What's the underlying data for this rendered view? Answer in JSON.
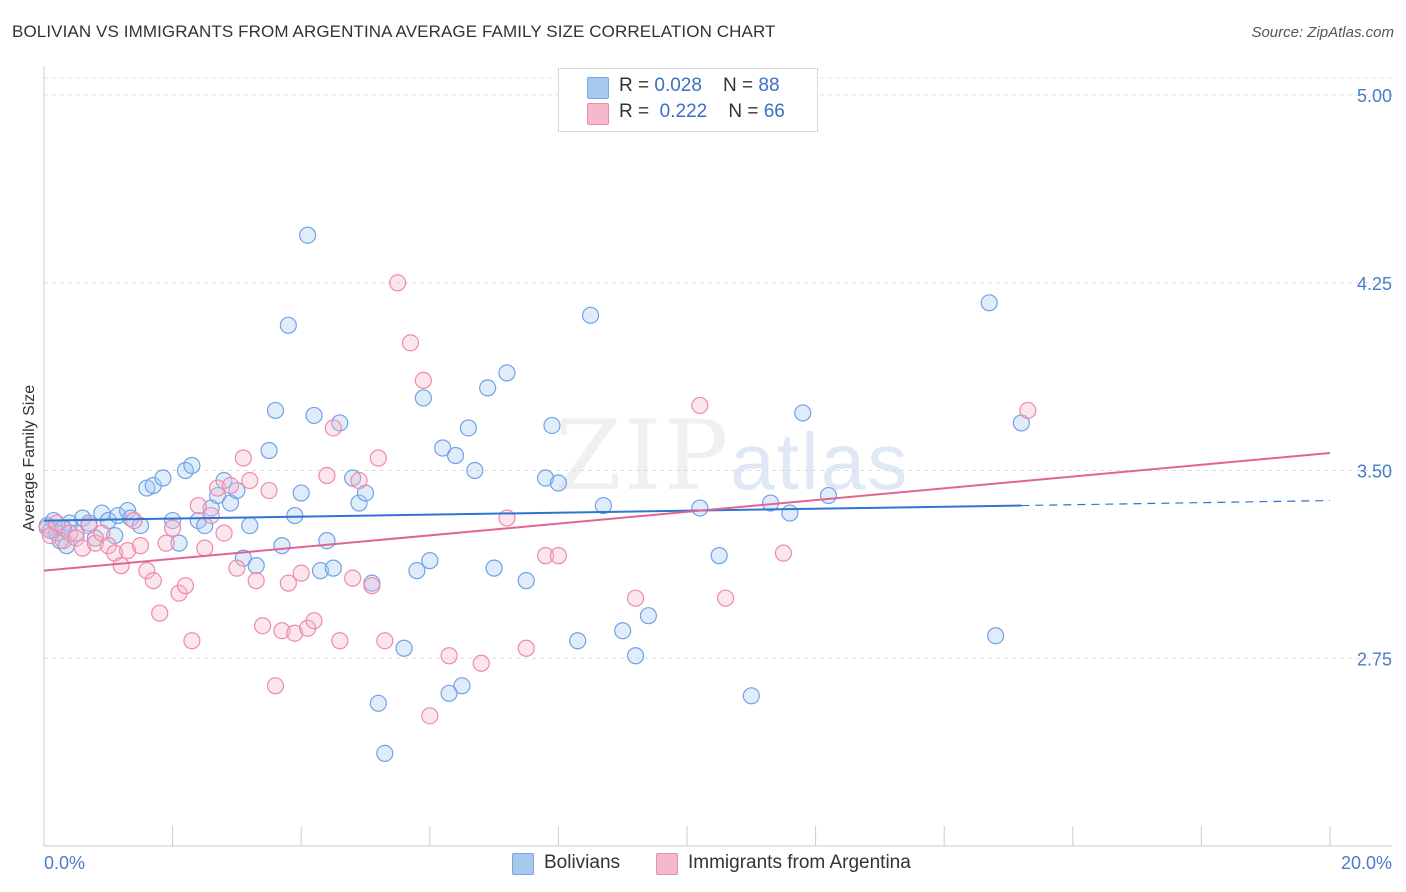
{
  "title": "BOLIVIAN VS IMMIGRANTS FROM ARGENTINA AVERAGE FAMILY SIZE CORRELATION CHART",
  "source": "Source: ZipAtlas.com",
  "watermark": {
    "big": "ZIP",
    "small": "atlas"
  },
  "legend": {
    "rows": [
      {
        "r_label": "R = ",
        "r_value": "0.028",
        "n_label": "N = ",
        "n_value": "88",
        "color": "#a8c8f0"
      },
      {
        "r_label": "R = ",
        "r_value": "0.222",
        "n_label": "N = ",
        "n_value": "66",
        "color": "#f6b8cc"
      }
    ]
  },
  "bottom_legend": [
    {
      "label": "Bolivians",
      "color": "#a8c8f0"
    },
    {
      "label": "Immigrants from Argentina",
      "color": "#f6b8cc"
    }
  ],
  "chart_data": {
    "type": "scatter",
    "title": "BOLIVIAN VS IMMIGRANTS FROM ARGENTINA AVERAGE FAMILY SIZE CORRELATION CHART",
    "xlabel": "",
    "ylabel": "Average Family Size",
    "xlim": [
      0,
      20
    ],
    "ylim": [
      2.0,
      5.1
    ],
    "x_tick_labels": [
      "0.0%",
      "20.0%"
    ],
    "y_ticks": [
      2.75,
      3.5,
      4.25,
      5.0
    ],
    "y_tick_labels": [
      "2.75",
      "3.50",
      "4.25",
      "5.00"
    ],
    "grid": "horizontal-dashed",
    "legend_position": "top-center",
    "series": [
      {
        "name": "Bolivians",
        "color": "#6fa3e6",
        "trend": {
          "x0": 0,
          "y0": 3.3,
          "x1": 15.2,
          "y1": 3.36,
          "dashed_to_x": 20,
          "dashed_to_y": 3.38
        },
        "points": [
          [
            0.05,
            3.28
          ],
          [
            0.1,
            3.26
          ],
          [
            0.15,
            3.3
          ],
          [
            0.2,
            3.25
          ],
          [
            0.25,
            3.22
          ],
          [
            0.3,
            3.27
          ],
          [
            0.35,
            3.2
          ],
          [
            0.4,
            3.29
          ],
          [
            0.5,
            3.25
          ],
          [
            0.6,
            3.31
          ],
          [
            0.7,
            3.29
          ],
          [
            0.8,
            3.23
          ],
          [
            0.9,
            3.33
          ],
          [
            1.0,
            3.3
          ],
          [
            1.1,
            3.24
          ],
          [
            1.15,
            3.32
          ],
          [
            1.3,
            3.34
          ],
          [
            1.35,
            3.31
          ],
          [
            1.5,
            3.28
          ],
          [
            1.6,
            3.43
          ],
          [
            1.7,
            3.44
          ],
          [
            1.85,
            3.47
          ],
          [
            2.0,
            3.3
          ],
          [
            2.1,
            3.21
          ],
          [
            2.2,
            3.5
          ],
          [
            2.3,
            3.52
          ],
          [
            2.4,
            3.3
          ],
          [
            2.5,
            3.28
          ],
          [
            2.6,
            3.35
          ],
          [
            2.7,
            3.4
          ],
          [
            2.8,
            3.46
          ],
          [
            2.9,
            3.37
          ],
          [
            3.0,
            3.42
          ],
          [
            3.1,
            3.15
          ],
          [
            3.2,
            3.28
          ],
          [
            3.3,
            3.12
          ],
          [
            3.5,
            3.58
          ],
          [
            3.6,
            3.74
          ],
          [
            3.7,
            3.2
          ],
          [
            3.8,
            4.08
          ],
          [
            3.9,
            3.32
          ],
          [
            4.0,
            3.41
          ],
          [
            4.1,
            4.44
          ],
          [
            4.2,
            3.72
          ],
          [
            4.3,
            3.1
          ],
          [
            4.4,
            3.22
          ],
          [
            4.5,
            3.11
          ],
          [
            4.6,
            3.69
          ],
          [
            4.8,
            3.47
          ],
          [
            4.9,
            3.37
          ],
          [
            5.0,
            3.41
          ],
          [
            5.1,
            3.05
          ],
          [
            5.2,
            2.57
          ],
          [
            5.3,
            2.37
          ],
          [
            5.6,
            2.79
          ],
          [
            5.8,
            3.1
          ],
          [
            5.9,
            3.79
          ],
          [
            6.0,
            3.14
          ],
          [
            6.2,
            3.59
          ],
          [
            6.3,
            2.61
          ],
          [
            6.4,
            3.56
          ],
          [
            6.5,
            2.64
          ],
          [
            6.6,
            3.67
          ],
          [
            6.7,
            3.5
          ],
          [
            6.9,
            3.83
          ],
          [
            7.0,
            3.11
          ],
          [
            7.2,
            3.89
          ],
          [
            7.5,
            3.06
          ],
          [
            7.8,
            3.47
          ],
          [
            7.9,
            3.68
          ],
          [
            8.0,
            3.45
          ],
          [
            8.3,
            2.82
          ],
          [
            8.5,
            4.12
          ],
          [
            8.7,
            3.36
          ],
          [
            9.0,
            2.86
          ],
          [
            9.2,
            2.76
          ],
          [
            9.4,
            2.92
          ],
          [
            10.2,
            3.35
          ],
          [
            10.5,
            3.16
          ],
          [
            11.0,
            2.6
          ],
          [
            11.3,
            3.37
          ],
          [
            11.6,
            3.33
          ],
          [
            11.8,
            3.73
          ],
          [
            12.2,
            3.4
          ],
          [
            14.7,
            4.17
          ],
          [
            14.8,
            2.84
          ],
          [
            15.2,
            3.69
          ],
          [
            0.3,
            3.27
          ]
        ]
      },
      {
        "name": "Immigrants from Argentina",
        "color": "#f08aa8",
        "trend": {
          "x0": 0,
          "y0": 3.1,
          "x1": 20,
          "y1": 3.57
        },
        "points": [
          [
            0.05,
            3.27
          ],
          [
            0.1,
            3.24
          ],
          [
            0.2,
            3.29
          ],
          [
            0.3,
            3.22
          ],
          [
            0.4,
            3.25
          ],
          [
            0.5,
            3.23
          ],
          [
            0.6,
            3.19
          ],
          [
            0.7,
            3.28
          ],
          [
            0.8,
            3.21
          ],
          [
            0.9,
            3.25
          ],
          [
            1.0,
            3.2
          ],
          [
            1.1,
            3.17
          ],
          [
            1.2,
            3.12
          ],
          [
            1.3,
            3.18
          ],
          [
            1.4,
            3.3
          ],
          [
            1.5,
            3.2
          ],
          [
            1.6,
            3.1
          ],
          [
            1.7,
            3.06
          ],
          [
            1.8,
            2.93
          ],
          [
            1.9,
            3.21
          ],
          [
            2.0,
            3.27
          ],
          [
            2.1,
            3.01
          ],
          [
            2.2,
            3.04
          ],
          [
            2.3,
            2.82
          ],
          [
            2.4,
            3.36
          ],
          [
            2.5,
            3.19
          ],
          [
            2.6,
            3.32
          ],
          [
            2.7,
            3.43
          ],
          [
            2.8,
            3.25
          ],
          [
            2.9,
            3.44
          ],
          [
            3.0,
            3.11
          ],
          [
            3.1,
            3.55
          ],
          [
            3.2,
            3.46
          ],
          [
            3.3,
            3.06
          ],
          [
            3.4,
            2.88
          ],
          [
            3.5,
            3.42
          ],
          [
            3.6,
            2.64
          ],
          [
            3.7,
            2.86
          ],
          [
            3.8,
            3.05
          ],
          [
            3.9,
            2.85
          ],
          [
            4.0,
            3.09
          ],
          [
            4.1,
            2.87
          ],
          [
            4.2,
            2.9
          ],
          [
            4.4,
            3.48
          ],
          [
            4.5,
            3.67
          ],
          [
            4.6,
            2.82
          ],
          [
            4.8,
            3.07
          ],
          [
            4.9,
            3.46
          ],
          [
            5.1,
            3.04
          ],
          [
            5.2,
            3.55
          ],
          [
            5.3,
            2.82
          ],
          [
            5.5,
            4.25
          ],
          [
            5.7,
            4.01
          ],
          [
            5.9,
            3.86
          ],
          [
            6.0,
            2.52
          ],
          [
            6.3,
            2.76
          ],
          [
            6.8,
            2.73
          ],
          [
            7.2,
            3.31
          ],
          [
            7.5,
            2.79
          ],
          [
            7.8,
            3.16
          ],
          [
            8.0,
            3.16
          ],
          [
            9.2,
            2.99
          ],
          [
            10.2,
            3.76
          ],
          [
            10.6,
            2.99
          ],
          [
            11.5,
            3.17
          ],
          [
            15.3,
            3.74
          ]
        ]
      }
    ]
  }
}
